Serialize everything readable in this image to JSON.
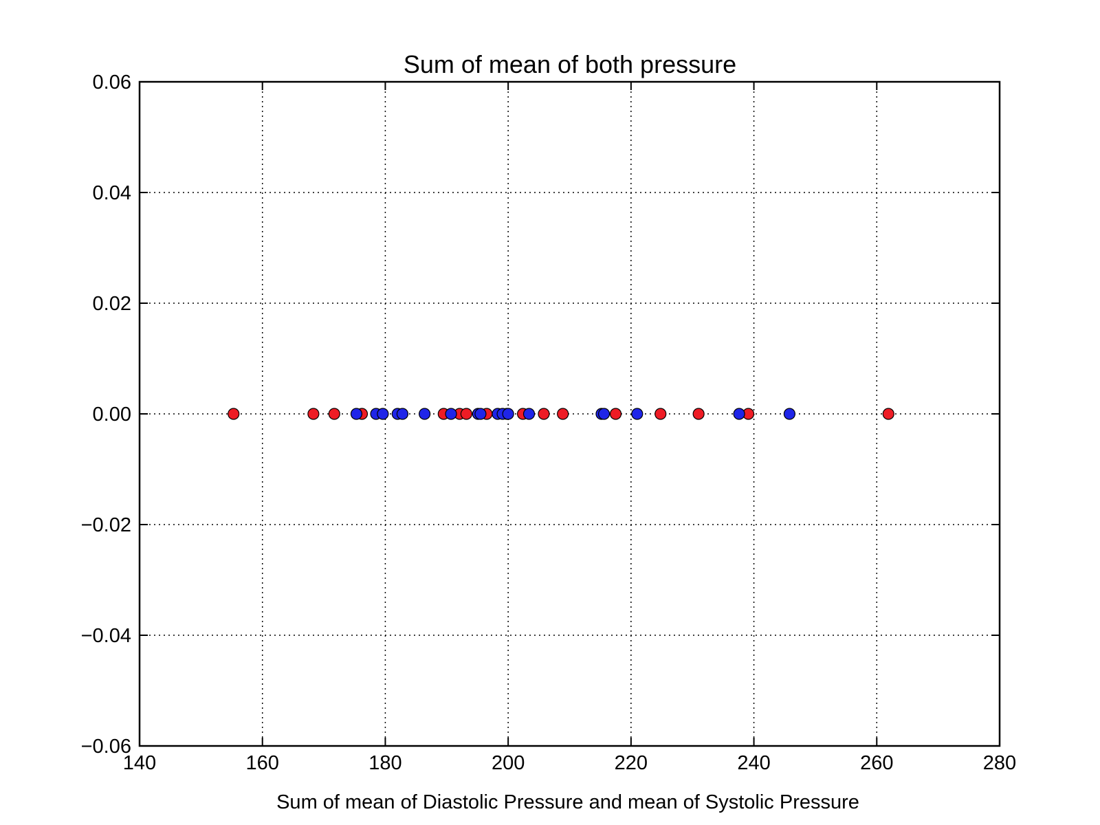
{
  "chart_data": {
    "type": "scatter",
    "title": "Sum of mean of both pressure",
    "xlabel": "Sum of mean of Diastolic Pressure and mean of Systolic Pressure",
    "ylabel": "",
    "xlim": [
      140,
      280
    ],
    "ylim": [
      -0.06,
      0.06
    ],
    "xticks": [
      140,
      160,
      180,
      200,
      220,
      240,
      260,
      280
    ],
    "xtick_labels": [
      "140",
      "160",
      "180",
      "200",
      "220",
      "240",
      "260",
      "280"
    ],
    "yticks": [
      0.06,
      0.04,
      0.02,
      0.0,
      -0.02,
      -0.04,
      -0.06
    ],
    "ytick_labels": [
      "0.06",
      "0.04",
      "0.02",
      "0.00",
      "−0.02",
      "−0.04",
      "−0.06"
    ],
    "grid": true,
    "legend": "none",
    "series": [
      {
        "color": "#ee1c25",
        "x": [
          155.3,
          168.3,
          171.7,
          176.2,
          189.5,
          192.1,
          193.2,
          196.5,
          199.8,
          202.4,
          205.8,
          208.9,
          217.5,
          224.8,
          231.0,
          239.1,
          261.9
        ],
        "y": [
          0,
          0,
          0,
          0,
          0,
          0,
          0,
          0,
          0,
          0,
          0,
          0,
          0,
          0,
          0,
          0,
          0
        ]
      },
      {
        "color": "#1f25e8",
        "x": [
          175.3,
          178.5,
          179.6,
          182.0,
          182.8,
          186.4,
          190.7,
          195.1,
          195.5,
          198.3,
          199.1,
          200.0,
          203.4,
          215.2,
          215.6,
          221.0,
          237.6,
          245.8
        ],
        "y": [
          0,
          0,
          0,
          0,
          0,
          0,
          0,
          0,
          0,
          0,
          0,
          0,
          0,
          0,
          0,
          0,
          0,
          0
        ]
      }
    ]
  }
}
